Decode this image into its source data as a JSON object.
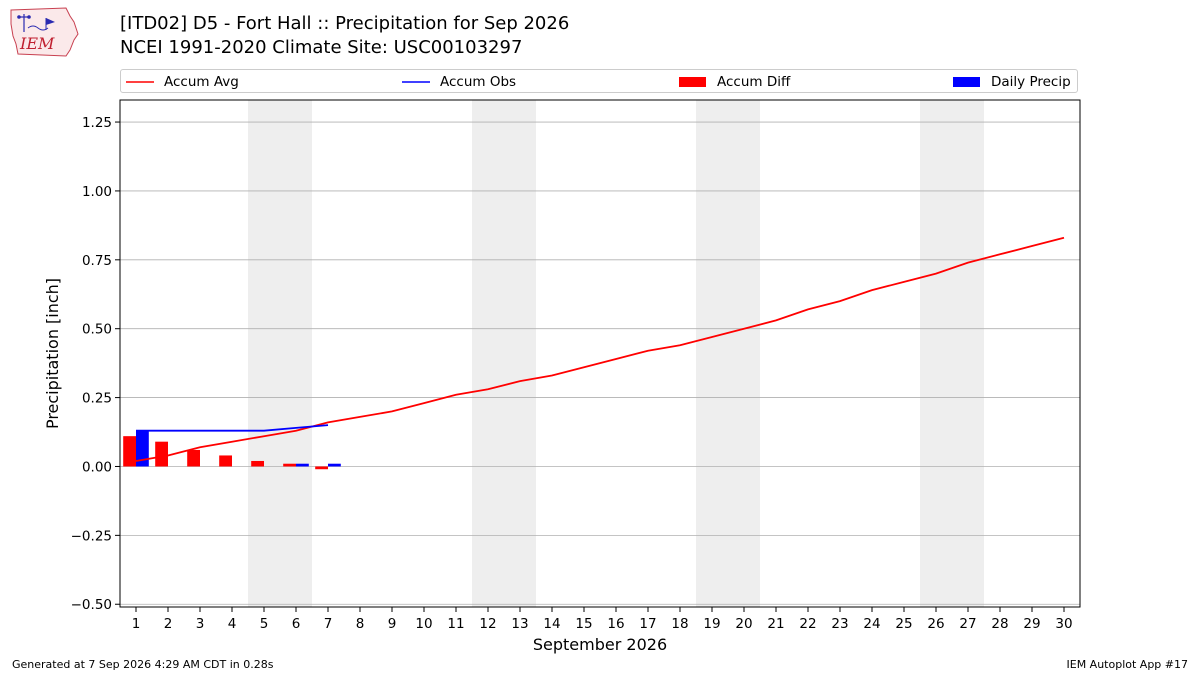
{
  "header": {
    "logo_text": "IEM",
    "title_line1": "[ITD02] D5 - Fort Hall  :: Precipitation for Sep 2026",
    "title_line2": "NCEI 1991-2020 Climate Site: USC00103297"
  },
  "legend": {
    "items": [
      {
        "label": "Accum Avg",
        "kind": "line",
        "color": "#ff0000"
      },
      {
        "label": "Accum Obs",
        "kind": "line",
        "color": "#0000ff"
      },
      {
        "label": "Accum Diff",
        "kind": "bar",
        "color": "#ff0000"
      },
      {
        "label": "Daily Precip",
        "kind": "bar",
        "color": "#0000ff"
      }
    ]
  },
  "footer": {
    "left": "Generated at 7 Sep 2026 4:29 AM CDT in 0.28s",
    "right": "IEM Autoplot App #17"
  },
  "chart_data": {
    "type": "line",
    "xlabel": "September 2026",
    "ylabel": "Precipitation [inch]",
    "xlim": [
      0.5,
      30.5
    ],
    "ylim": [
      -0.51,
      1.33
    ],
    "x_ticks": [
      1,
      2,
      3,
      4,
      5,
      6,
      7,
      8,
      9,
      10,
      11,
      12,
      13,
      14,
      15,
      16,
      17,
      18,
      19,
      20,
      21,
      22,
      23,
      24,
      25,
      26,
      27,
      28,
      29,
      30
    ],
    "y_ticks": [
      -0.5,
      -0.25,
      0.0,
      0.25,
      0.5,
      0.75,
      1.0,
      1.25
    ],
    "y_tick_labels": [
      "−0.50",
      "−0.25",
      "0.00",
      "0.25",
      "0.50",
      "0.75",
      "1.00",
      "1.25"
    ],
    "grid": "horizontal",
    "legend_position": "top",
    "weekend_shading": [
      [
        4.5,
        6.5
      ],
      [
        11.5,
        13.5
      ],
      [
        18.5,
        20.5
      ],
      [
        25.5,
        27.5
      ]
    ],
    "colors": {
      "avg": "#ff0000",
      "obs": "#0000ff",
      "shade": "#eeeeee",
      "grid": "#b0b0b0"
    },
    "series": [
      {
        "name": "Accum Avg",
        "kind": "line",
        "x": [
          1,
          2,
          3,
          4,
          5,
          6,
          7,
          8,
          9,
          10,
          11,
          12,
          13,
          14,
          15,
          16,
          17,
          18,
          19,
          20,
          21,
          22,
          23,
          24,
          25,
          26,
          27,
          28,
          29,
          30
        ],
        "values": [
          0.02,
          0.04,
          0.07,
          0.09,
          0.11,
          0.13,
          0.16,
          0.18,
          0.2,
          0.23,
          0.26,
          0.28,
          0.31,
          0.33,
          0.36,
          0.39,
          0.42,
          0.44,
          0.47,
          0.5,
          0.53,
          0.57,
          0.6,
          0.64,
          0.67,
          0.7,
          0.74,
          0.77,
          0.8,
          0.83
        ]
      },
      {
        "name": "Accum Obs",
        "kind": "line",
        "x": [
          1,
          2,
          3,
          4,
          5,
          6,
          7
        ],
        "values": [
          0.13,
          0.13,
          0.13,
          0.13,
          0.13,
          0.14,
          0.15
        ]
      },
      {
        "name": "Accum Diff",
        "kind": "bar",
        "x": [
          1,
          2,
          3,
          4,
          5,
          6,
          7
        ],
        "values": [
          0.11,
          0.09,
          0.06,
          0.04,
          0.02,
          0.01,
          -0.01
        ]
      },
      {
        "name": "Daily Precip",
        "kind": "bar",
        "x": [
          1,
          2,
          3,
          4,
          5,
          6,
          7
        ],
        "values": [
          0.13,
          0.0,
          0.0,
          0.0,
          0.0,
          0.01,
          0.01
        ]
      }
    ]
  }
}
